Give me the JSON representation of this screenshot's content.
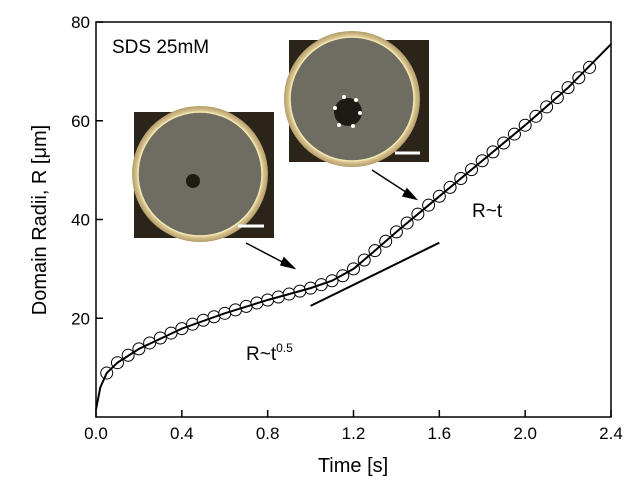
{
  "chart_data": {
    "type": "scatter",
    "xlabel": "Time [s]",
    "ylabel": "Domain Radii, R [μm]",
    "xlim": [
      0,
      2.4
    ],
    "ylim": [
      0,
      80
    ],
    "xticks": [
      {
        "value": 0,
        "label": "0.0"
      },
      0.4,
      0.8,
      1.2,
      1.6,
      {
        "value": 2,
        "label": "2.0"
      },
      2.4
    ],
    "yticks": [
      20,
      40,
      60,
      80
    ],
    "annotations": {
      "sample": "SDS 25mM",
      "linear": "R~t",
      "sqrt_base": "R~t",
      "sqrt_exp": "0.5"
    },
    "series": [
      {
        "kind": "points",
        "color": "#000000",
        "x": [
          0.05,
          0.1,
          0.15,
          0.2,
          0.25,
          0.3,
          0.35,
          0.4,
          0.45,
          0.5,
          0.55,
          0.6,
          0.65,
          0.7,
          0.75,
          0.8,
          0.85,
          0.9,
          0.95,
          1.0,
          1.05,
          1.1,
          1.15,
          1.2,
          1.25,
          1.3,
          1.35,
          1.4,
          1.45,
          1.5,
          1.55,
          1.6,
          1.65,
          1.7,
          1.75,
          1.8,
          1.85,
          1.9,
          1.95,
          2.0,
          2.05,
          2.1,
          2.15,
          2.2,
          2.25,
          2.3
        ],
        "values": [
          8.9,
          11.0,
          12.5,
          13.8,
          15.0,
          16.0,
          17.0,
          17.9,
          18.8,
          19.6,
          20.3,
          21.0,
          21.7,
          22.4,
          23.1,
          23.7,
          24.3,
          24.9,
          25.5,
          26.1,
          26.8,
          27.6,
          28.6,
          30.0,
          31.8,
          33.7,
          35.6,
          37.5,
          39.3,
          41.1,
          42.9,
          44.7,
          46.5,
          48.3,
          50.1,
          51.9,
          53.7,
          55.5,
          57.3,
          59.1,
          60.9,
          62.8,
          64.7,
          66.7,
          68.7,
          70.8
        ]
      },
      {
        "kind": "line",
        "color": "#000000",
        "x": [
          0,
          0.02,
          0.05,
          0.1,
          0.2,
          0.4,
          0.6,
          0.8,
          1.0,
          1.1,
          1.2,
          1.3,
          1.4,
          1.6,
          1.8,
          2.0,
          2.2,
          2.4
        ],
        "values": [
          1.5,
          6,
          8.9,
          11,
          13.8,
          17.9,
          21,
          23.7,
          26.1,
          27.6,
          30,
          33.7,
          37.5,
          44.7,
          51.9,
          59.1,
          66.7,
          75.5
        ]
      },
      {
        "kind": "line",
        "color": "#000000",
        "x": [
          1.0,
          1.6
        ],
        "values": [
          22.5,
          35.3
        ]
      }
    ]
  }
}
